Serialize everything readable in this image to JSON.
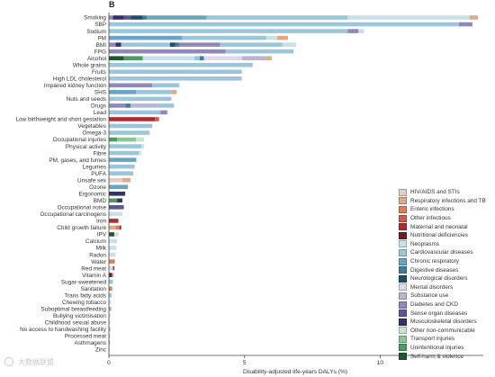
{
  "panel_label": "B",
  "chart_data": {
    "type": "bar",
    "orientation": "horizontal",
    "stacked": true,
    "xlabel": "Disability-adjusted life-years DALYs (%)",
    "xlim": [
      0,
      13.8
    ],
    "xticks": [
      0,
      5,
      10
    ],
    "grid": false,
    "legend_position": "bottom-right",
    "causes": [
      {
        "name": "HIV/AIDS and STIs",
        "color": "#e1cfc5"
      },
      {
        "name": "Respiratory infections and TB",
        "color": "#e0a98a"
      },
      {
        "name": "Enteric infections",
        "color": "#d97f5c"
      },
      {
        "name": "Other infectious",
        "color": "#c95c48"
      },
      {
        "name": "Maternal and neonatal",
        "color": "#ae2c2f"
      },
      {
        "name": "Nutritional deficiencies",
        "color": "#6e1f21"
      },
      {
        "name": "Neoplasms",
        "color": "#c8e0ea"
      },
      {
        "name": "Cardiovascular diseases",
        "color": "#9bc6da"
      },
      {
        "name": "Chronic respiratory",
        "color": "#6aa4c2"
      },
      {
        "name": "Digestive diseases",
        "color": "#3f7c9c"
      },
      {
        "name": "Neurological disorders",
        "color": "#1f4f68"
      },
      {
        "name": "Mental disorders",
        "color": "#ddd9ea"
      },
      {
        "name": "Substance use",
        "color": "#b9b3d4"
      },
      {
        "name": "Diabetes and CKD",
        "color": "#8f88b8"
      },
      {
        "name": "Sense organ diseases",
        "color": "#5d5595"
      },
      {
        "name": "Musculoskeletal disorders",
        "color": "#362f6a"
      },
      {
        "name": "Other non-communicable",
        "color": "#c9e4cc"
      },
      {
        "name": "Transport injuries",
        "color": "#8cc495"
      },
      {
        "name": "Unintentional injuries",
        "color": "#4e9b5e"
      },
      {
        "name": "Self-harm & violence",
        "color": "#1d5a32"
      }
    ],
    "categories": [
      "Smoking",
      "SBP",
      "Sodium",
      "PM",
      "BMI",
      "FPG",
      "Alcohol",
      "Whole grains",
      "Fruits",
      "High LDL cholesterol",
      "Impaired kidney function",
      "SHS",
      "Nuts and seeds",
      "Drugs",
      "Lead",
      "Low birthweight and short gestation",
      "Vegetables",
      "Omega-3",
      "Occupational injuries",
      "Physical activity",
      "Fibre",
      "PM, gases, and fumes",
      "Legumes",
      "PUFA",
      "Unsafe sex",
      "Ozone",
      "Ergonomic",
      "BMD",
      "Occupational noise",
      "Occupational carcinogens",
      "Iron",
      "Child growth failure",
      "IPV",
      "Calcium",
      "Milk",
      "Radon",
      "Water",
      "Red meat",
      "Vitamin A",
      "Sugar-sweetened",
      "Sanitation",
      "Trans fatty acids",
      "Chewing tobacco",
      "Suboptimal breastfeeding",
      "Bullying victimisation",
      "Childhood sexual abuse",
      "No access to handwashing facility",
      "Processed meat",
      "Asthmagens",
      "Zinc"
    ],
    "bars": [
      [
        [
          "Diabetes and CKD",
          0.15
        ],
        [
          "Musculoskeletal disorders",
          0.4
        ],
        [
          "Sense organ diseases",
          0.25
        ],
        [
          "Neurological disorders",
          0.45
        ],
        [
          "Digestive diseases",
          0.15
        ],
        [
          "Chronic respiratory",
          2.2
        ],
        [
          "Cardiovascular diseases",
          5.2
        ],
        [
          "Neoplasms",
          4.5
        ],
        [
          "Respiratory infections and TB",
          0.3
        ]
      ],
      [
        [
          "Cardiovascular diseases",
          12.9
        ],
        [
          "Diabetes and CKD",
          0.5
        ]
      ],
      [
        [
          "Cardiovascular diseases",
          8.8
        ],
        [
          "Diabetes and CKD",
          0.4
        ],
        [
          "Neoplasms",
          0.2
        ]
      ],
      [
        [
          "Chronic respiratory",
          2.7
        ],
        [
          "Cardiovascular diseases",
          3.1
        ],
        [
          "Neoplasms",
          0.4
        ],
        [
          "Respiratory infections and TB",
          0.4
        ]
      ],
      [
        [
          "Diabetes and CKD",
          0.25
        ],
        [
          "Musculoskeletal disorders",
          0.2
        ],
        [
          "Cardiovascular diseases",
          1.8
        ],
        [
          "Neurological disorders",
          0.2
        ],
        [
          "Digestive diseases",
          0.15
        ],
        [
          "Diabetes and CKD",
          1.5
        ],
        [
          "Cardiovascular diseases",
          2.3
        ],
        [
          "Neoplasms",
          0.5
        ]
      ],
      [
        [
          "Diabetes and CKD",
          4.3
        ],
        [
          "Cardiovascular diseases",
          2.5
        ]
      ],
      [
        [
          "Self-harm & violence",
          0.55
        ],
        [
          "Unintentional injuries",
          0.7
        ],
        [
          "Neoplasms",
          1.9
        ],
        [
          "Cardiovascular diseases",
          0.2
        ],
        [
          "Digestive diseases",
          0.15
        ],
        [
          "Mental disorders",
          1.4
        ],
        [
          "Substance use",
          0.9
        ],
        [
          "Respiratory infections and TB",
          0.2
        ]
      ],
      [
        [
          "Cardiovascular diseases",
          5.3
        ]
      ],
      [
        [
          "Cardiovascular diseases",
          4.9
        ]
      ],
      [
        [
          "Cardiovascular diseases",
          4.9
        ]
      ],
      [
        [
          "Diabetes and CKD",
          1.6
        ],
        [
          "Cardiovascular diseases",
          1.0
        ]
      ],
      [
        [
          "Chronic respiratory",
          1.0
        ],
        [
          "Cardiovascular diseases",
          1.3
        ],
        [
          "Respiratory infections and TB",
          0.2
        ]
      ],
      [
        [
          "Cardiovascular diseases",
          2.3
        ]
      ],
      [
        [
          "Diabetes and CKD",
          0.6
        ],
        [
          "Digestive diseases",
          0.2
        ],
        [
          "Substance use",
          1.0
        ],
        [
          "Cardiovascular diseases",
          0.6
        ]
      ],
      [
        [
          "Cardiovascular diseases",
          1.9
        ],
        [
          "Diabetes and CKD",
          0.25
        ]
      ],
      [
        [
          "Maternal and neonatal",
          1.7
        ],
        [
          "Other infectious",
          0.15
        ]
      ],
      [
        [
          "Cardiovascular diseases",
          1.6
        ]
      ],
      [
        [
          "Cardiovascular diseases",
          1.5
        ]
      ],
      [
        [
          "Unintentional injuries",
          0.3
        ],
        [
          "Transport injuries",
          0.7
        ],
        [
          "Other non-communicable",
          0.3
        ]
      ],
      [
        [
          "Cardiovascular diseases",
          1.2
        ],
        [
          "Neoplasms",
          0.1
        ]
      ],
      [
        [
          "Cardiovascular diseases",
          1.1
        ],
        [
          "Neoplasms",
          0.1
        ]
      ],
      [
        [
          "Chronic respiratory",
          1.0
        ],
        [
          "Neoplasms",
          0.05
        ]
      ],
      [
        [
          "Cardiovascular diseases",
          0.95
        ]
      ],
      [
        [
          "Cardiovascular diseases",
          0.9
        ]
      ],
      [
        [
          "HIV/AIDS and STIs",
          0.5
        ],
        [
          "Respiratory infections and TB",
          0.3
        ]
      ],
      [
        [
          "Chronic respiratory",
          0.7
        ]
      ],
      [
        [
          "Musculoskeletal disorders",
          0.6
        ]
      ],
      [
        [
          "Unintentional injuries",
          0.3
        ],
        [
          "Musculoskeletal disorders",
          0.2
        ]
      ],
      [
        [
          "Sense organ diseases",
          0.55
        ]
      ],
      [
        [
          "Neoplasms",
          0.5
        ]
      ],
      [
        [
          "Maternal and neonatal",
          0.35
        ]
      ],
      [
        [
          "Respiratory infections and TB",
          0.25
        ],
        [
          "Enteric infections",
          0.15
        ],
        [
          "Nutritional deficiencies",
          0.05
        ]
      ],
      [
        [
          "Self-harm & violence",
          0.2
        ],
        [
          "Mental disorders",
          0.1
        ],
        [
          "HIV/AIDS and STIs",
          0.05
        ]
      ],
      [
        [
          "Neoplasms",
          0.3
        ]
      ],
      [
        [
          "Neoplasms",
          0.28
        ]
      ],
      [
        [
          "Neoplasms",
          0.25
        ]
      ],
      [
        [
          "Enteric infections",
          0.22
        ]
      ],
      [
        [
          "Neoplasms",
          0.15
        ],
        [
          "Maternal and neonatal",
          0.05
        ]
      ],
      [
        [
          "Nutritional deficiencies",
          0.12
        ],
        [
          "Respiratory infections and TB",
          0.06
        ]
      ],
      [
        [
          "Cardiovascular diseases",
          0.15
        ]
      ],
      [
        [
          "Enteric infections",
          0.12
        ]
      ],
      [
        [
          "Cardiovascular diseases",
          0.1
        ]
      ],
      [
        [
          "Neoplasms",
          0.08
        ]
      ],
      [
        [
          "Respiratory infections and TB",
          0.05
        ],
        [
          "Enteric infections",
          0.03
        ]
      ],
      [
        [
          "Mental disorders",
          0.06
        ]
      ],
      [
        [
          "Mental disorders",
          0.05
        ]
      ],
      [
        [
          "Respiratory infections and TB",
          0.03
        ],
        [
          "Enteric infections",
          0.02
        ]
      ],
      [
        [
          "Cardiovascular diseases",
          0.04
        ]
      ],
      [
        [
          "Chronic respiratory",
          0.03
        ]
      ],
      [
        [
          "Enteric infections",
          0.02
        ]
      ]
    ]
  },
  "watermark": "大数据联盟"
}
